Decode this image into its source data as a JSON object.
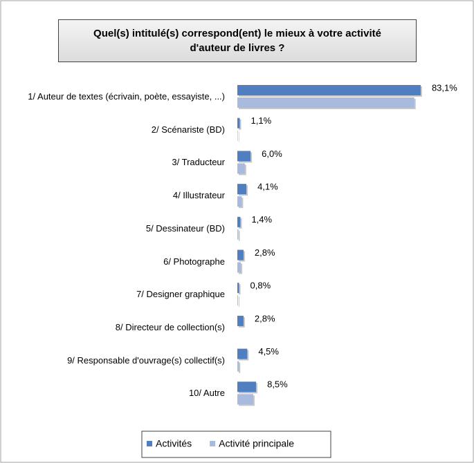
{
  "chart_data": {
    "type": "hbar",
    "title": "Quel(s) intitulé(s) correspond(ent) le mieux à votre activité d'auteur de livres ?",
    "categories": [
      "1/ Auteur de textes (écrivain, poète, essayiste, ...)",
      "2/ Scénariste (BD)",
      "3/ Traducteur",
      "4/ Illustrateur",
      "5/ Dessinateur (BD)",
      "6/ Photographe",
      "7/ Designer graphique",
      "8/ Directeur de collection(s)",
      "9/ Responsable d'ouvrage(s) collectif(s)",
      "10/ Autre"
    ],
    "series": [
      {
        "name": "Activités",
        "color": "#4f7fc0",
        "values": [
          83.1,
          1.1,
          6.0,
          4.1,
          1.4,
          2.8,
          0.8,
          2.8,
          4.5,
          8.5
        ],
        "value_labels": [
          "83,1%",
          "1,1%",
          "6,0%",
          "4,1%",
          "1,4%",
          "2,8%",
          "0,8%",
          "2,8%",
          "4,5%",
          "8,5%"
        ]
      },
      {
        "name": "Activité principale",
        "color": "#a8badd",
        "values": [
          80.2,
          0.2,
          3.4,
          2.0,
          0.5,
          1.6,
          0.3,
          0,
          0.7,
          7.2
        ]
      }
    ],
    "xlim": [
      0,
      85
    ]
  }
}
